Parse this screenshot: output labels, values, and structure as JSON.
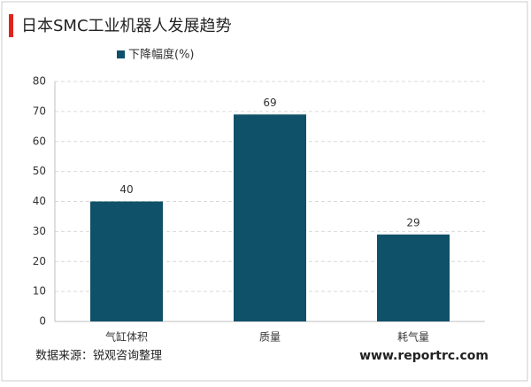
{
  "chart_data": {
    "type": "bar",
    "title": "日本SMC工业机器人发展趋势",
    "categories": [
      "气缸体积",
      "质量",
      "耗气量"
    ],
    "series": [
      {
        "name": "下降幅度(%)",
        "color": "#0f5168",
        "values": [
          40,
          69,
          29
        ]
      }
    ],
    "ylim": [
      0,
      80
    ],
    "yticks": [
      0,
      10,
      20,
      30,
      40,
      50,
      60,
      70,
      80
    ],
    "grid": true,
    "source": "数据来源：锐观咨询整理",
    "website": "www.reportrc.com"
  }
}
